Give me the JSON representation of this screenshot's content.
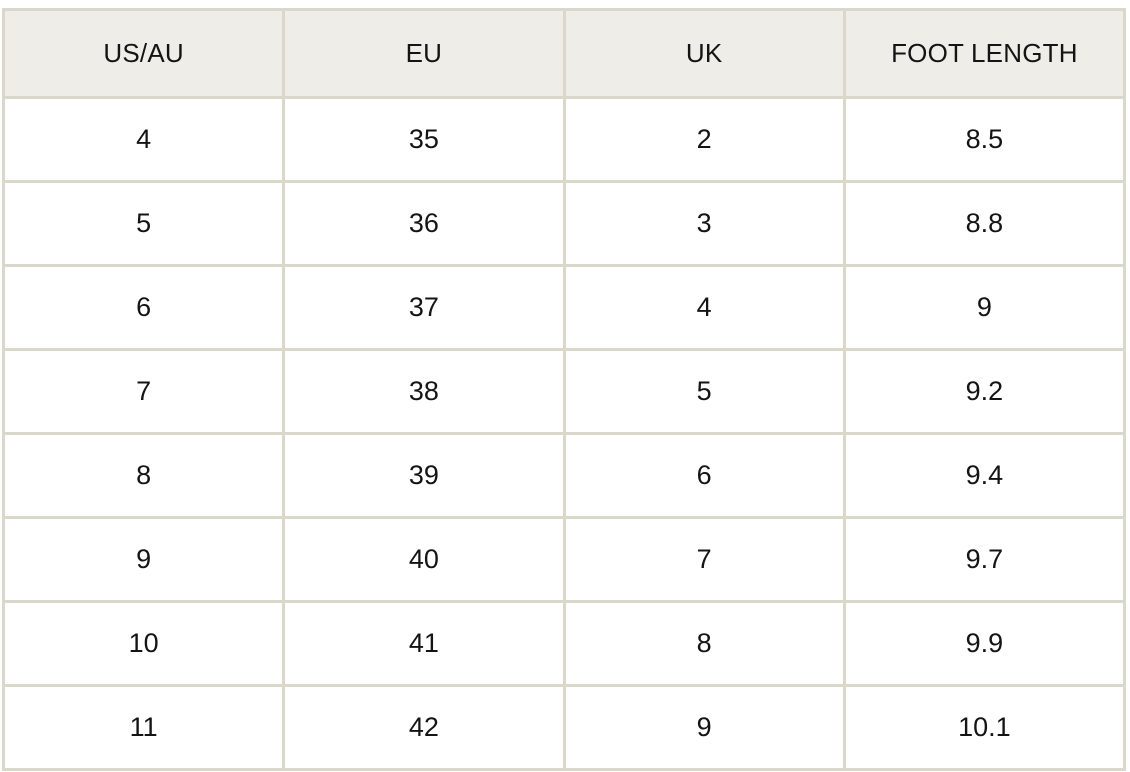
{
  "chart_data": {
    "type": "table",
    "columns": [
      "US/AU",
      "EU",
      "UK",
      "FOOT LENGTH"
    ],
    "rows": [
      [
        "4",
        "35",
        "2",
        "8.5"
      ],
      [
        "5",
        "36",
        "3",
        "8.8"
      ],
      [
        "6",
        "37",
        "4",
        "9"
      ],
      [
        "7",
        "38",
        "5",
        "9.2"
      ],
      [
        "8",
        "39",
        "6",
        "9.4"
      ],
      [
        "9",
        "40",
        "7",
        "9.7"
      ],
      [
        "10",
        "41",
        "8",
        "9.9"
      ],
      [
        "11",
        "42",
        "9",
        "10.1"
      ]
    ]
  },
  "colors": {
    "header_background": "#efede8",
    "border": "#dad8cb",
    "cell_background": "#ffffff",
    "text": "#141414"
  }
}
